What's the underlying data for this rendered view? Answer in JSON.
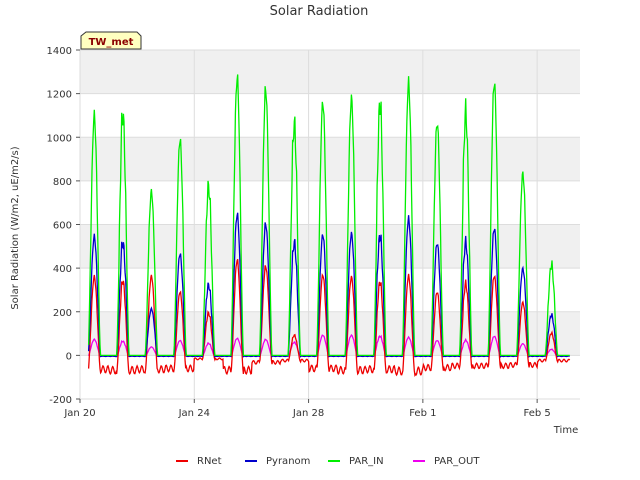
{
  "chart_data": {
    "type": "line",
    "title": "Solar Radiation",
    "xlabel": "Time",
    "ylabel": "Solar Radiation (W/m2, uE/m2/s)",
    "site_label": "TW_met",
    "ylim": [
      -200,
      1400
    ],
    "yticks": [
      -200,
      0,
      200,
      400,
      600,
      800,
      1000,
      1200,
      1400
    ],
    "xlim_days": [
      0,
      17.5
    ],
    "xticks": [
      {
        "day": 0,
        "label": "Jan 20"
      },
      {
        "day": 4,
        "label": "Jan 24"
      },
      {
        "day": 8,
        "label": "Jan 28"
      },
      {
        "day": 12,
        "label": "Feb 1"
      },
      {
        "day": 16,
        "label": "Feb 5"
      }
    ],
    "grid": true,
    "legend_position": "bottom",
    "series": [
      {
        "name": "RNet",
        "color": "#ee0000",
        "peaks": [
          370,
          370,
          375,
          300,
          210,
          450,
          420,
          100,
          380,
          370,
          365,
          375,
          300,
          355,
          375,
          250,
          110
        ],
        "night": [
          -80,
          -85,
          -80,
          -75,
          -20,
          -85,
          -40,
          -30,
          -75,
          -85,
          -80,
          -90,
          -70,
          -60,
          -60,
          -55,
          -30
        ]
      },
      {
        "name": "Pyranom",
        "color": "#0000cc",
        "peaks": [
          560,
          560,
          220,
          480,
          350,
          665,
          620,
          560,
          570,
          575,
          595,
          645,
          530,
          560,
          600,
          410,
          200
        ],
        "night": [
          -5,
          -5,
          -5,
          -5,
          -5,
          -5,
          -5,
          -5,
          -5,
          -5,
          -5,
          -5,
          -5,
          -5,
          -5,
          -5,
          -5
        ]
      },
      {
        "name": "PAR_IN",
        "color": "#00ee00",
        "peaks": [
          1130,
          1195,
          775,
          1020,
          840,
          1310,
          1255,
          1150,
          1195,
          1215,
          1250,
          1285,
          1100,
          1205,
          1290,
          860,
          450
        ],
        "night": [
          0,
          0,
          0,
          0,
          0,
          0,
          0,
          0,
          0,
          0,
          0,
          0,
          0,
          0,
          0,
          0,
          0
        ]
      },
      {
        "name": "PAR_OUT",
        "color": "#ee00ee",
        "peaks": [
          75,
          70,
          40,
          70,
          60,
          80,
          75,
          65,
          95,
          95,
          95,
          85,
          70,
          75,
          90,
          55,
          30
        ],
        "night": [
          -5,
          -5,
          -5,
          -5,
          -5,
          -5,
          -5,
          -5,
          -5,
          -5,
          -5,
          -5,
          -5,
          -5,
          -5,
          -5,
          -5
        ]
      }
    ]
  }
}
